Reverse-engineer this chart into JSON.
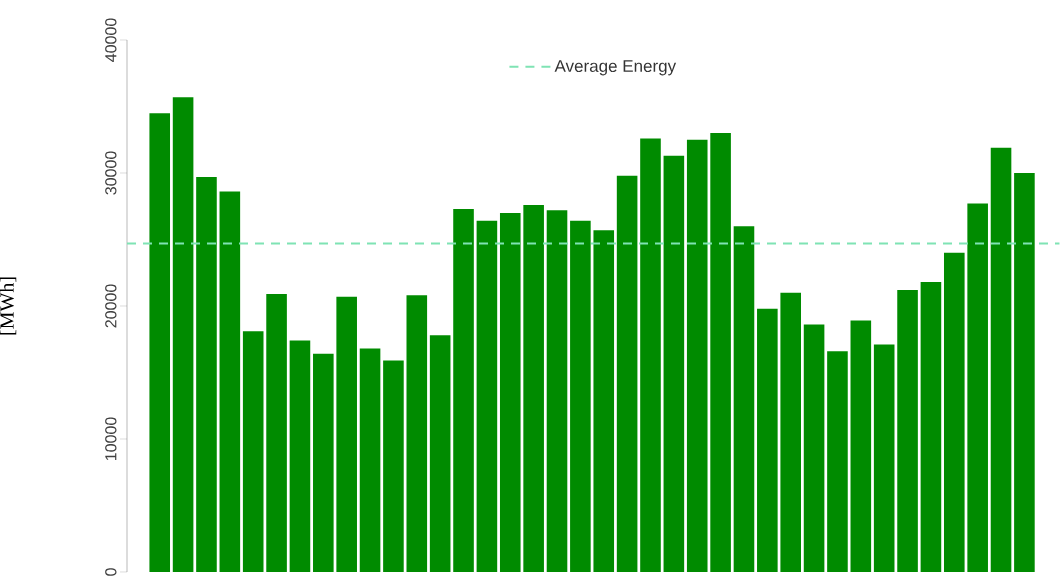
{
  "chart_data": {
    "type": "bar",
    "ylabel": "[MWh]",
    "categories": [
      null,
      null,
      null,
      null,
      null,
      null,
      null,
      null,
      null,
      null,
      null,
      null,
      null,
      null,
      null,
      null,
      null,
      null,
      null,
      null,
      null,
      null,
      null,
      null,
      null,
      null,
      null,
      null,
      null,
      null,
      null,
      null,
      null,
      null,
      null,
      null,
      null,
      null
    ],
    "values": [
      34500,
      35700,
      29700,
      28600,
      18100,
      20900,
      17400,
      16400,
      20700,
      16800,
      15900,
      20800,
      17800,
      27300,
      26400,
      27000,
      27600,
      27200,
      26400,
      25700,
      29800,
      32600,
      31300,
      32500,
      33000,
      26000,
      19800,
      21000,
      18600,
      16600,
      18900,
      17100,
      21200,
      21800,
      24000,
      27700,
      31900,
      30000
    ],
    "color": "#008b00",
    "ylim": [
      0,
      40000
    ],
    "yticks": [
      0,
      10000,
      20000,
      30000,
      40000
    ],
    "ref_lines": [
      {
        "axis": "y",
        "value": 24700,
        "label": "Average Energy",
        "color": "#7fe3b4",
        "line_style": "dashed"
      }
    ],
    "legend": "top",
    "tick_labels": "y",
    "grid": false
  }
}
